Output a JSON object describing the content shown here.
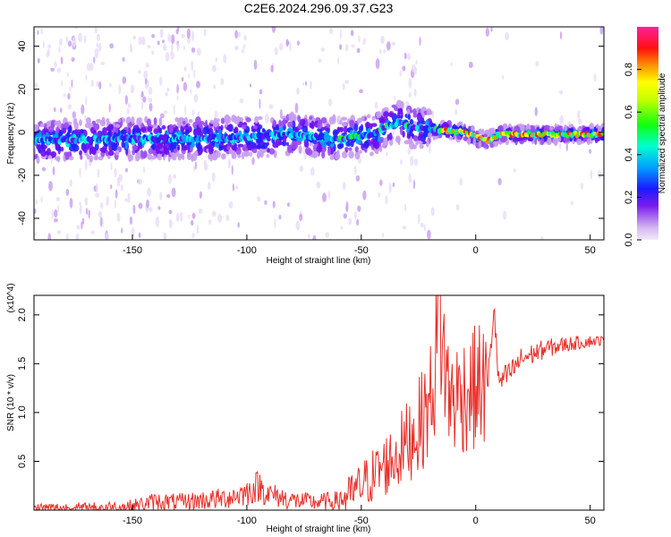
{
  "title": "C2E6.2024.296.09.37.G23",
  "chart_data": [
    {
      "type": "heatmap",
      "xlabel": "Height of straight line (km)",
      "ylabel": "Frequency (Hz)",
      "xlim": [
        -193,
        56
      ],
      "ylim": [
        -50,
        49
      ],
      "x_ticks": [
        -150,
        -100,
        -50,
        0,
        50
      ],
      "y_ticks": [
        -40,
        -20,
        0,
        20,
        40
      ],
      "colorbar": {
        "label": "Normalized spectral amplitude",
        "range": [
          0.0,
          1.0
        ],
        "ticks": [
          0.0,
          0.2,
          0.4,
          0.6,
          0.8
        ],
        "colormap": "rainbow (purple-blue-cyan-green-yellow-orange-red-magenta)"
      },
      "ridge_center_frequency": {
        "x": [
          -193,
          -150,
          -120,
          -100,
          -80,
          -60,
          -45,
          -38,
          -33,
          -28,
          -15,
          -5,
          0,
          5,
          10,
          20,
          56
        ],
        "y": [
          -4,
          -3,
          -3,
          -2,
          -1,
          -3,
          -1,
          3,
          5,
          2,
          1,
          0,
          -2,
          -4,
          -1,
          -1,
          -1
        ]
      },
      "peak_amplitude_region_x": [
        -15,
        56
      ]
    },
    {
      "type": "line",
      "xlabel": "Height of straight line (km)",
      "ylabel": "SNR (10 * v/v)",
      "y_multiplier": "(x10^4)",
      "xlim": [
        -193,
        56
      ],
      "ylim": [
        0,
        2.2
      ],
      "x_ticks": [
        -150,
        -100,
        -50,
        0,
        50
      ],
      "y_ticks": [
        0.5,
        1.0,
        1.5,
        2.0
      ],
      "series": [
        {
          "color": "#e8302a",
          "x": [
            -193,
            -170,
            -150,
            -140,
            -130,
            -120,
            -110,
            -100,
            -95,
            -90,
            -80,
            -70,
            -60,
            -55,
            -50,
            -45,
            -40,
            -35,
            -30,
            -25,
            -20,
            -17,
            -16,
            -15,
            -12,
            -10,
            -5,
            0,
            3,
            5,
            8,
            10,
            15,
            20,
            30,
            40,
            50,
            56
          ],
          "y": [
            0.02,
            0.02,
            0.04,
            0.09,
            0.08,
            0.1,
            0.12,
            0.18,
            0.25,
            0.16,
            0.1,
            0.08,
            0.1,
            0.15,
            0.25,
            0.35,
            0.45,
            0.55,
            0.7,
            0.85,
            1.1,
            1.6,
            2.2,
            1.8,
            1.2,
            1.15,
            1.2,
            1.25,
            1.3,
            1.2,
            2.1,
            1.3,
            1.4,
            1.55,
            1.65,
            1.7,
            1.73,
            1.74
          ]
        }
      ]
    }
  ]
}
